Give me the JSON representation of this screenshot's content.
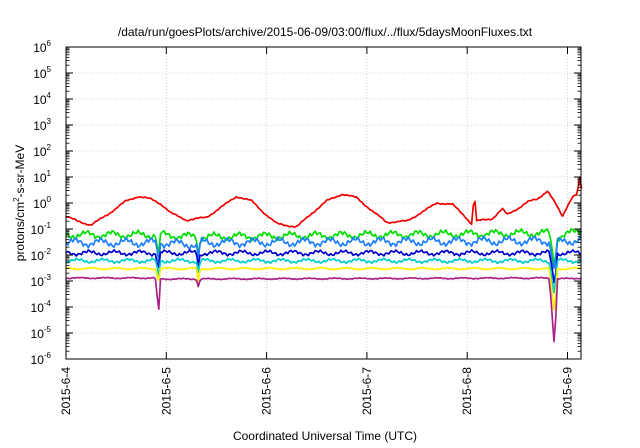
{
  "chart_data": {
    "type": "line",
    "title": "/data/run/goesPlots/archive/2015-06-09/03:00/flux/../flux/5daysMoonFluxes.txt",
    "xlabel": "Coordinated Universal Time (UTC)",
    "ylabel_base": "protons/cm",
    "ylabel_sup": "2",
    "ylabel_rest": "-s-sr-MeV",
    "y_scale": "log",
    "ylim_exp": [
      -6,
      6
    ],
    "y_ticks": [
      {
        "base": "10",
        "exp": "-6",
        "value": -6
      },
      {
        "base": "10",
        "exp": "-5",
        "value": -5
      },
      {
        "base": "10",
        "exp": "-4",
        "value": -4
      },
      {
        "base": "10",
        "exp": "-3",
        "value": -3
      },
      {
        "base": "10",
        "exp": "-2",
        "value": -2
      },
      {
        "base": "10",
        "exp": "-1",
        "value": -1
      },
      {
        "base": "10",
        "exp": "0",
        "value": 0
      },
      {
        "base": "10",
        "exp": "1",
        "value": 1
      },
      {
        "base": "10",
        "exp": "2",
        "value": 2
      },
      {
        "base": "10",
        "exp": "3",
        "value": 3
      },
      {
        "base": "10",
        "exp": "4",
        "value": 4
      },
      {
        "base": "10",
        "exp": "5",
        "value": 5
      },
      {
        "base": "10",
        "exp": "6",
        "value": 6
      }
    ],
    "xlim_days": [
      0,
      5.14
    ],
    "x_ticks": [
      {
        "label": "2015-6-4",
        "value": 0
      },
      {
        "label": "2015-6-5",
        "value": 1
      },
      {
        "label": "2015-6-6",
        "value": 2
      },
      {
        "label": "2015-6-7",
        "value": 3
      },
      {
        "label": "2015-6-8",
        "value": 4
      },
      {
        "label": "2015-6-9",
        "value": 5
      }
    ],
    "grid": true,
    "series": [
      {
        "color": "#ee0000",
        "noise": 0.04,
        "points": [
          [
            0,
            0.3
          ],
          [
            0.12,
            0.2
          ],
          [
            0.25,
            0.14
          ],
          [
            0.45,
            0.45
          ],
          [
            0.6,
            1.2
          ],
          [
            0.72,
            1.8
          ],
          [
            0.85,
            1.4
          ],
          [
            0.95,
            0.9
          ],
          [
            1.05,
            0.4
          ],
          [
            1.2,
            0.22
          ],
          [
            1.4,
            0.28
          ],
          [
            1.55,
            0.7
          ],
          [
            1.7,
            1.8
          ],
          [
            1.85,
            1.2
          ],
          [
            1.98,
            0.4
          ],
          [
            2.1,
            0.16
          ],
          [
            2.3,
            0.12
          ],
          [
            2.45,
            0.4
          ],
          [
            2.6,
            1.2
          ],
          [
            2.75,
            2.2
          ],
          [
            2.9,
            1.6
          ],
          [
            3.05,
            0.5
          ],
          [
            3.2,
            0.18
          ],
          [
            3.4,
            0.2
          ],
          [
            3.55,
            0.45
          ],
          [
            3.7,
            1.0
          ],
          [
            3.85,
            0.9
          ],
          [
            3.98,
            0.3
          ],
          [
            4.05,
            0.15
          ],
          [
            4.07,
            3.5
          ],
          [
            4.09,
            0.2
          ],
          [
            4.25,
            0.25
          ],
          [
            4.35,
            0.6
          ],
          [
            4.4,
            0.35
          ],
          [
            4.5,
            0.6
          ],
          [
            4.6,
            1.1
          ],
          [
            4.7,
            1.4
          ],
          [
            4.8,
            3.0
          ],
          [
            4.85,
            1.5
          ],
          [
            4.95,
            0.3
          ],
          [
            5.0,
            0.8
          ],
          [
            5.05,
            1.8
          ],
          [
            5.1,
            2.2
          ],
          [
            5.12,
            12
          ],
          [
            5.13,
            4
          ],
          [
            5.14,
            3.5
          ]
        ]
      },
      {
        "color": "#00dd00",
        "noise": 0.18,
        "points": [
          [
            0,
            0.06
          ],
          [
            0.9,
            0.06
          ],
          [
            0.92,
            0.005
          ],
          [
            0.94,
            0.06
          ],
          [
            1.3,
            0.05
          ],
          [
            1.32,
            0.01
          ],
          [
            1.34,
            0.05
          ],
          [
            4.82,
            0.07
          ],
          [
            4.87,
            0.004
          ],
          [
            4.9,
            0.05
          ],
          [
            5.14,
            0.09
          ]
        ]
      },
      {
        "color": "#1e7fff",
        "noise": 0.2,
        "points": [
          [
            0,
            0.03
          ],
          [
            0.9,
            0.03
          ],
          [
            0.92,
            0.004
          ],
          [
            0.94,
            0.03
          ],
          [
            1.3,
            0.025
          ],
          [
            1.32,
            0.006
          ],
          [
            1.34,
            0.03
          ],
          [
            4.82,
            0.035
          ],
          [
            4.87,
            0.002
          ],
          [
            4.9,
            0.03
          ],
          [
            5.14,
            0.04
          ]
        ]
      },
      {
        "color": "#0000cc",
        "noise": 0.12,
        "points": [
          [
            0,
            0.012
          ],
          [
            0.9,
            0.012
          ],
          [
            0.92,
            0.002
          ],
          [
            0.94,
            0.012
          ],
          [
            1.3,
            0.012
          ],
          [
            1.32,
            0.004
          ],
          [
            1.34,
            0.012
          ],
          [
            4.82,
            0.012
          ],
          [
            4.87,
            0.0007
          ],
          [
            4.9,
            0.012
          ],
          [
            5.14,
            0.012
          ]
        ]
      },
      {
        "color": "#00cccc",
        "noise": 0.1,
        "points": [
          [
            0,
            0.006
          ],
          [
            0.9,
            0.006
          ],
          [
            0.92,
            0.001
          ],
          [
            0.94,
            0.006
          ],
          [
            1.3,
            0.006
          ],
          [
            1.32,
            0.002
          ],
          [
            1.34,
            0.006
          ],
          [
            4.82,
            0.006
          ],
          [
            4.87,
            0.0003
          ],
          [
            4.9,
            0.006
          ],
          [
            5.14,
            0.006
          ]
        ]
      },
      {
        "color": "#ffee00",
        "noise": 0.05,
        "points": [
          [
            0,
            0.003
          ],
          [
            0.9,
            0.003
          ],
          [
            0.92,
            0.0008
          ],
          [
            0.94,
            0.003
          ],
          [
            1.3,
            0.003
          ],
          [
            1.32,
            0.001
          ],
          [
            1.34,
            0.003
          ],
          [
            4.82,
            0.003
          ],
          [
            4.87,
            5e-05
          ],
          [
            4.9,
            0.003
          ],
          [
            5.14,
            0.003
          ]
        ]
      },
      {
        "color": "#aa2288",
        "noise": 0.03,
        "points": [
          [
            0,
            0.0013
          ],
          [
            0.88,
            0.0013
          ],
          [
            0.9,
            0.0011
          ],
          [
            0.92,
            3e-05
          ],
          [
            0.94,
            0.0012
          ],
          [
            1.3,
            0.0012
          ],
          [
            1.32,
            0.0006
          ],
          [
            1.34,
            0.0012
          ],
          [
            4.82,
            0.0013
          ],
          [
            4.87,
            3e-06
          ],
          [
            4.9,
            0.0012
          ],
          [
            5.14,
            0.0013
          ]
        ]
      }
    ]
  }
}
